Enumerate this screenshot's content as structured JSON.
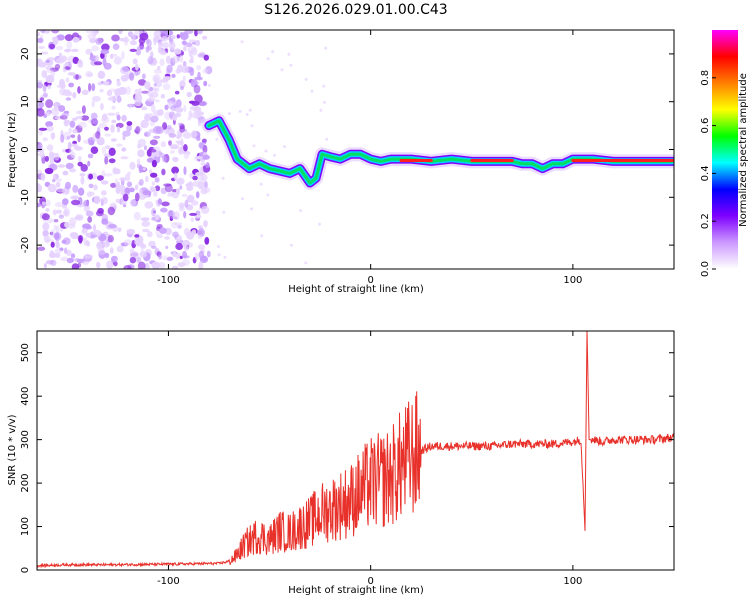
{
  "title": "S126.2026.029.01.00.C43",
  "chart_data": [
    {
      "type": "heatmap",
      "name": "spectrogram",
      "xlabel": "Height of straight line (km)",
      "ylabel": "Frequency (Hz)",
      "xlim": [
        -165,
        150
      ],
      "ylim": [
        -25,
        25
      ],
      "xticks": [
        -100,
        0,
        100
      ],
      "xtick_labels": [
        "-100",
        "0",
        "100"
      ],
      "yticks": [
        -20,
        -10,
        0,
        10,
        20
      ],
      "ytick_labels": [
        "-20",
        "-10",
        "0",
        "10",
        "20"
      ],
      "noise_region_x": [
        -165,
        -80
      ],
      "ridge": {
        "x": [
          -80,
          -75,
          -70,
          -66,
          -60,
          -55,
          -50,
          -45,
          -40,
          -35,
          -30,
          -27,
          -24,
          -20,
          -15,
          -10,
          -5,
          0,
          5,
          10,
          15,
          20,
          30,
          40,
          50,
          60,
          70,
          75,
          80,
          85,
          90,
          95,
          100,
          110,
          120,
          130,
          140,
          150
        ],
        "freq": [
          5,
          6,
          2,
          -2,
          -4,
          -3,
          -4,
          -4.5,
          -5,
          -4,
          -7,
          -6,
          -1,
          -1.5,
          -2,
          -1,
          -1,
          -2,
          -2.5,
          -2,
          -2,
          -2,
          -2.5,
          -2,
          -2.5,
          -2.5,
          -2.5,
          -3,
          -3,
          -4,
          -3,
          -3,
          -2,
          -2,
          -2.5,
          -2.5,
          -2.5,
          -2.5
        ]
      },
      "colorbar": {
        "label": "Normalized spectral amplitude",
        "range": [
          0,
          1
        ],
        "ticks": [
          0.0,
          0.2,
          0.4,
          0.6,
          0.8
        ],
        "tick_labels": [
          "0.0",
          "0.2",
          "0.4",
          "0.6",
          "0.8"
        ],
        "colors": [
          "#ffffff",
          "#cc99ff",
          "#7f00ff",
          "#0000ff",
          "#00ffff",
          "#00ff00",
          "#ffff00",
          "#ff7f00",
          "#ff0000",
          "#ff00ff"
        ]
      }
    },
    {
      "type": "line",
      "name": "snr",
      "xlabel": "Height of straight line (km)",
      "ylabel": "SNR (10 * v/v)",
      "xlim": [
        -165,
        150
      ],
      "ylim": [
        0,
        550
      ],
      "xticks": [
        -100,
        0,
        100
      ],
      "xtick_labels": [
        "-100",
        "0",
        "100"
      ],
      "yticks": [
        0,
        100,
        200,
        300,
        400,
        500
      ],
      "ytick_labels": [
        "0",
        "100",
        "200",
        "300",
        "400",
        "500"
      ],
      "series": [
        {
          "name": "SNR",
          "color": "#e8312a",
          "x": [
            -165,
            -150,
            -130,
            -110,
            -90,
            -80,
            -75,
            -70,
            -67,
            -62,
            -56,
            -50,
            -45,
            -40,
            -35,
            -30,
            -25,
            -20,
            -15,
            -10,
            -5,
            0,
            5,
            10,
            15,
            20,
            25,
            30,
            40,
            50,
            60,
            70,
            80,
            90,
            100,
            104,
            106,
            107,
            108,
            110,
            115,
            120,
            130,
            140,
            150
          ],
          "y": [
            10,
            12,
            12,
            13,
            14,
            15,
            15,
            20,
            30,
            60,
            80,
            70,
            90,
            85,
            100,
            110,
            130,
            140,
            150,
            160,
            180,
            200,
            205,
            215,
            240,
            260,
            275,
            285,
            285,
            285,
            285,
            290,
            290,
            290,
            295,
            300,
            90,
            550,
            300,
            300,
            295,
            300,
            300,
            300,
            305
          ]
        }
      ]
    }
  ]
}
